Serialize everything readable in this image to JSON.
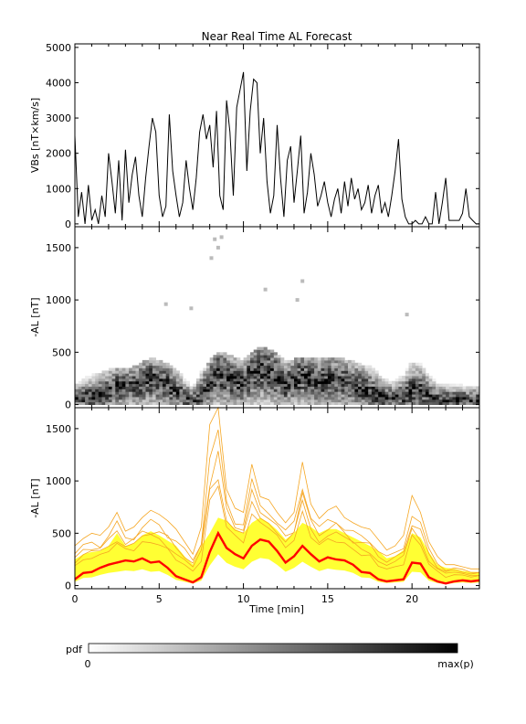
{
  "title": "Near Real Time AL Forecast",
  "colorbar": {
    "label": "pdf",
    "min_label": "0",
    "max_label": "max(p)"
  },
  "colors": {
    "main_line": "#000000",
    "ensemble_fill": "#ffff33",
    "ensemble_lines": "#f5a623",
    "median_line": "#ff0000"
  },
  "chart_data": [
    {
      "type": "line",
      "name": "vbs-panel",
      "xlabel": "",
      "ylabel": "VBs [nT×km/s]",
      "xlim": [
        0,
        24
      ],
      "ylim": [
        -80,
        5100
      ],
      "yticks": [
        0,
        1000,
        2000,
        3000,
        4000,
        5000
      ],
      "x": [
        0,
        0.2,
        0.4,
        0.6,
        0.8,
        1.0,
        1.2,
        1.4,
        1.6,
        1.8,
        2.0,
        2.2,
        2.4,
        2.6,
        2.8,
        3.0,
        3.2,
        3.4,
        3.6,
        3.8,
        4.0,
        4.2,
        4.4,
        4.6,
        4.8,
        5.0,
        5.2,
        5.4,
        5.6,
        5.8,
        6.0,
        6.2,
        6.4,
        6.6,
        6.8,
        7.0,
        7.2,
        7.4,
        7.6,
        7.8,
        8.0,
        8.2,
        8.4,
        8.6,
        8.8,
        9.0,
        9.2,
        9.4,
        9.6,
        9.8,
        10.0,
        10.2,
        10.4,
        10.6,
        10.8,
        11.0,
        11.2,
        11.4,
        11.6,
        11.8,
        12.0,
        12.2,
        12.4,
        12.6,
        12.8,
        13.0,
        13.2,
        13.4,
        13.6,
        13.8,
        14.0,
        14.2,
        14.4,
        14.6,
        14.8,
        15.0,
        15.2,
        15.4,
        15.6,
        15.8,
        16.0,
        16.2,
        16.4,
        16.6,
        16.8,
        17.0,
        17.2,
        17.4,
        17.6,
        17.8,
        18.0,
        18.2,
        18.4,
        18.6,
        18.8,
        19.0,
        19.2,
        19.4,
        19.6,
        19.8,
        20.0,
        20.2,
        20.4,
        20.6,
        20.8,
        21.0,
        21.2,
        21.4,
        21.6,
        21.8,
        22.0,
        22.2,
        22.4,
        22.6,
        22.8,
        23.0,
        23.2,
        23.4,
        23.6,
        23.8,
        24.0
      ],
      "y": [
        2500,
        200,
        900,
        0,
        1100,
        100,
        400,
        0,
        800,
        200,
        2000,
        1200,
        300,
        1800,
        100,
        2100,
        600,
        1400,
        1900,
        800,
        200,
        1300,
        2200,
        3000,
        2600,
        800,
        200,
        500,
        3100,
        1500,
        800,
        200,
        600,
        1800,
        1000,
        400,
        1300,
        2600,
        3100,
        2400,
        2800,
        1600,
        3200,
        800,
        400,
        3500,
        2600,
        800,
        3300,
        3800,
        4300,
        1500,
        3200,
        4100,
        4000,
        2000,
        3000,
        1200,
        300,
        800,
        2800,
        1300,
        200,
        1800,
        2200,
        600,
        1500,
        2500,
        300,
        900,
        2000,
        1400,
        500,
        800,
        1200,
        600,
        200,
        700,
        1000,
        300,
        1200,
        500,
        1300,
        700,
        1000,
        400,
        600,
        1100,
        300,
        800,
        1100,
        300,
        600,
        200,
        800,
        1500,
        2400,
        700,
        200,
        0,
        0,
        100,
        0,
        0,
        200,
        0,
        0,
        900,
        0,
        600,
        1300,
        100,
        100,
        100,
        100,
        300,
        1000,
        200,
        100,
        0,
        0
      ]
    },
    {
      "type": "heatmap",
      "name": "al-pdf-panel",
      "xlabel": "",
      "ylabel": "-AL [nT]",
      "xlim": [
        0,
        24
      ],
      "ylim": [
        -30,
        1700
      ],
      "yticks": [
        0,
        500,
        1000,
        1500
      ],
      "x": [
        0,
        0.5,
        1.0,
        1.5,
        2.0,
        2.5,
        3.0,
        3.5,
        4.0,
        4.5,
        5.0,
        5.5,
        6.0,
        6.5,
        7.0,
        7.5,
        8.0,
        8.5,
        9.0,
        9.5,
        10.0,
        10.5,
        11.0,
        11.5,
        12.0,
        12.5,
        13.0,
        13.5,
        14.0,
        14.5,
        15.0,
        15.5,
        16.0,
        16.5,
        17.0,
        17.5,
        18.0,
        18.5,
        19.0,
        19.5,
        20.0,
        20.5,
        21.0,
        21.5,
        22.0,
        22.5,
        23.0,
        23.5,
        24.0
      ],
      "center": [
        40,
        60,
        70,
        90,
        120,
        160,
        150,
        170,
        200,
        230,
        220,
        180,
        120,
        60,
        30,
        90,
        200,
        280,
        250,
        210,
        200,
        280,
        330,
        300,
        250,
        180,
        220,
        250,
        230,
        200,
        230,
        220,
        200,
        170,
        150,
        120,
        80,
        50,
        50,
        60,
        130,
        120,
        70,
        40,
        40,
        40,
        45,
        40,
        40
      ],
      "spread": [
        200,
        250,
        280,
        300,
        330,
        350,
        330,
        350,
        400,
        430,
        420,
        380,
        330,
        250,
        180,
        300,
        420,
        500,
        480,
        430,
        420,
        500,
        550,
        520,
        480,
        400,
        420,
        450,
        450,
        430,
        450,
        450,
        420,
        400,
        380,
        350,
        300,
        250,
        250,
        300,
        400,
        380,
        300,
        220,
        200,
        200,
        180,
        180,
        180
      ],
      "outliers": [
        [
          8.3,
          1580
        ],
        [
          8.5,
          1500
        ],
        [
          8.1,
          1400
        ],
        [
          8.7,
          1600
        ],
        [
          13.5,
          1180
        ],
        [
          13.2,
          1000
        ],
        [
          11.3,
          1100
        ],
        [
          19.7,
          860
        ],
        [
          6.9,
          920
        ],
        [
          5.4,
          960
        ]
      ]
    },
    {
      "type": "area",
      "name": "al-forecast-panel",
      "xlabel": "Time [min]",
      "ylabel": "-AL [nT]",
      "xlim": [
        0,
        24
      ],
      "ylim": [
        -30,
        1700
      ],
      "xticks": [
        0,
        5,
        10,
        15,
        20
      ],
      "yticks": [
        0,
        500,
        1000,
        1500
      ],
      "x": [
        0,
        0.5,
        1.0,
        1.5,
        2.0,
        2.5,
        3.0,
        3.5,
        4.0,
        4.5,
        5.0,
        5.5,
        6.0,
        6.5,
        7.0,
        7.5,
        8.0,
        8.5,
        9.0,
        9.5,
        10.0,
        10.5,
        11.0,
        11.5,
        12.0,
        12.5,
        13.0,
        13.5,
        14.0,
        14.5,
        15.0,
        15.5,
        16.0,
        16.5,
        17.0,
        17.5,
        18.0,
        18.5,
        19.0,
        19.5,
        20.0,
        20.5,
        21.0,
        21.5,
        22.0,
        22.5,
        23.0,
        23.5,
        24.0
      ],
      "median": [
        60,
        120,
        130,
        170,
        200,
        220,
        240,
        230,
        260,
        220,
        230,
        170,
        90,
        60,
        30,
        80,
        320,
        500,
        360,
        300,
        260,
        380,
        440,
        420,
        330,
        220,
        280,
        380,
        300,
        230,
        270,
        250,
        240,
        200,
        130,
        120,
        60,
        40,
        50,
        60,
        220,
        210,
        80,
        40,
        20,
        40,
        50,
        40,
        50
      ],
      "upper": [
        250,
        300,
        320,
        330,
        380,
        500,
        380,
        400,
        480,
        520,
        480,
        430,
        380,
        280,
        200,
        380,
        500,
        650,
        620,
        540,
        500,
        600,
        650,
        600,
        530,
        440,
        500,
        600,
        560,
        500,
        540,
        540,
        500,
        460,
        420,
        380,
        330,
        260,
        280,
        340,
        500,
        460,
        320,
        200,
        170,
        160,
        140,
        130,
        130
      ],
      "lines_upper": [
        380,
        450,
        500,
        480,
        560,
        700,
        520,
        560,
        650,
        720,
        680,
        620,
        540,
        420,
        300,
        560,
        1540,
        1700,
        920,
        740,
        700,
        1160,
        850,
        820,
        700,
        600,
        700,
        1180,
        780,
        640,
        720,
        760,
        650,
        600,
        560,
        540,
        440,
        340,
        380,
        480,
        860,
        700,
        420,
        280,
        200,
        200,
        180,
        160,
        160
      ]
    }
  ]
}
